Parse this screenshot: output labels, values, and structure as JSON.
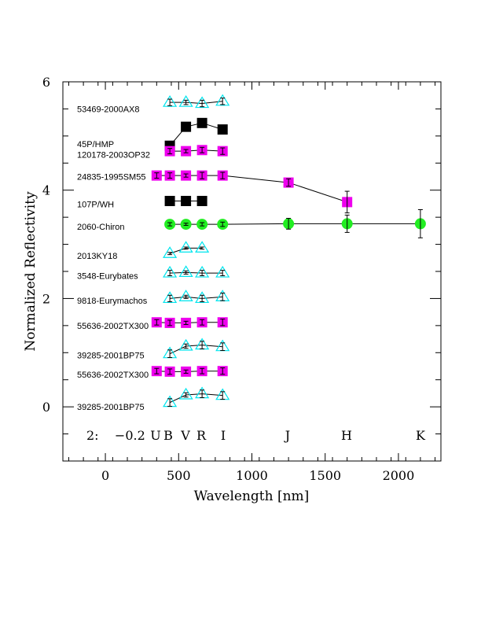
{
  "chart_data": {
    "type": "scatter",
    "xlabel": "Wavelength [nm]",
    "ylabel": "Normalized Reflectivity",
    "xlim": [
      -290,
      2290
    ],
    "ylim": [
      -1.0,
      6.0
    ],
    "xticks": [
      0,
      500,
      1000,
      1500,
      2000
    ],
    "yticks": [
      0,
      2,
      4,
      6
    ],
    "annotation": "2:    −0.2",
    "bands": [
      {
        "label": "U",
        "x": 420
      },
      {
        "label": "B",
        "x": 440
      },
      {
        "label": "V",
        "x": 550
      },
      {
        "label": "R",
        "x": 660
      },
      {
        "label": "I",
        "x": 800
      },
      {
        "label": "J",
        "x": 1250
      },
      {
        "label": "H",
        "x": 1650
      },
      {
        "label": "K",
        "x": 2150
      }
    ],
    "series": [
      {
        "name": "53469-2000AX8",
        "marker": "triangle",
        "color": "#00e5ee",
        "x": [
          440,
          550,
          660,
          800
        ],
        "y": [
          5.62,
          5.62,
          5.6,
          5.64
        ],
        "err": [
          0.06,
          0.04,
          0.06,
          0.06
        ]
      },
      {
        "name": "45P/HMP",
        "marker": "square",
        "color": "#000000",
        "x": [
          440,
          550,
          660,
          800
        ],
        "y": [
          4.82,
          5.17,
          5.24,
          5.12
        ],
        "err": [
          0,
          0,
          0,
          0
        ]
      },
      {
        "name": "120178-2003OP32",
        "marker": "square",
        "color": "#ee00ee",
        "x": [
          440,
          550,
          660,
          800
        ],
        "y": [
          4.72,
          4.72,
          4.74,
          4.72
        ],
        "err": [
          0.05,
          0.03,
          0.05,
          0.06
        ]
      },
      {
        "name": "24835-1995SM55",
        "marker": "square",
        "color": "#ee00ee",
        "x": [
          350,
          440,
          550,
          660,
          800,
          1250,
          1650
        ],
        "y": [
          4.27,
          4.27,
          4.27,
          4.27,
          4.27,
          4.14,
          3.78
        ],
        "err": [
          0.05,
          0.05,
          0.03,
          0.06,
          0.06,
          0.07,
          0.2
        ]
      },
      {
        "name": "107P/WH",
        "marker": "square",
        "color": "#000000",
        "x": [
          440,
          550,
          660
        ],
        "y": [
          3.8,
          3.8,
          3.8
        ],
        "err": [
          0,
          0,
          0
        ]
      },
      {
        "name": "2060-Chiron",
        "marker": "circle",
        "color": "#22ee22",
        "x": [
          440,
          550,
          660,
          800,
          1250,
          1650,
          2150
        ],
        "y": [
          3.37,
          3.37,
          3.37,
          3.37,
          3.38,
          3.38,
          3.38
        ],
        "err": [
          0.03,
          0.02,
          0.03,
          0.04,
          0.1,
          0.16,
          0.26
        ]
      },
      {
        "name": "2013KY18",
        "marker": "triangle",
        "color": "#00e5ee",
        "x": [
          440,
          550,
          660
        ],
        "y": [
          2.83,
          2.93,
          2.93
        ],
        "err": [
          0.02,
          0.02,
          0.02
        ]
      },
      {
        "name": "3548-Eurybates",
        "marker": "triangle",
        "color": "#00e5ee",
        "x": [
          440,
          550,
          660,
          800
        ],
        "y": [
          2.47,
          2.48,
          2.47,
          2.47
        ],
        "err": [
          0.05,
          0.03,
          0.05,
          0.05
        ]
      },
      {
        "name": "9818-Eurymachos",
        "marker": "triangle",
        "color": "#00e5ee",
        "x": [
          440,
          550,
          660,
          800
        ],
        "y": [
          2.0,
          2.03,
          2.0,
          2.03
        ],
        "err": [
          0.06,
          0.03,
          0.06,
          0.07
        ]
      },
      {
        "name": "55636-2002TX300",
        "marker": "square",
        "color": "#ee00ee",
        "x": [
          350,
          440,
          550,
          660,
          800
        ],
        "y": [
          1.56,
          1.55,
          1.55,
          1.56,
          1.56
        ],
        "err": [
          0.05,
          0.05,
          0.03,
          0.05,
          0.06
        ]
      },
      {
        "name": "39285-2001BP75",
        "marker": "triangle",
        "color": "#00e5ee",
        "x": [
          440,
          550,
          660,
          800
        ],
        "y": [
          0.98,
          1.12,
          1.14,
          1.11
        ],
        "err": [
          0.07,
          0.04,
          0.07,
          0.07
        ]
      },
      {
        "name": "55636-2002TX300",
        "marker": "square",
        "color": "#ee00ee",
        "x": [
          350,
          440,
          550,
          660,
          800
        ],
        "y": [
          0.66,
          0.65,
          0.65,
          0.66,
          0.66
        ],
        "err": [
          0.05,
          0.05,
          0.03,
          0.05,
          0.06
        ]
      },
      {
        "name": "39285-2001BP75",
        "marker": "triangle",
        "color": "#00e5ee",
        "x": [
          440,
          550,
          660,
          800
        ],
        "y": [
          0.08,
          0.22,
          0.24,
          0.21
        ],
        "err": [
          0.07,
          0.04,
          0.07,
          0.07
        ]
      }
    ],
    "labels": [
      {
        "text": "53469-2000AX8",
        "y": 5.5
      },
      {
        "text": "45P/HMP",
        "y": 4.85
      },
      {
        "text": "120178-2003OP32",
        "y": 4.66
      },
      {
        "text": "24835-1995SM55",
        "y": 4.25
      },
      {
        "text": "107P/WH",
        "y": 3.74
      },
      {
        "text": "2060-Chiron",
        "y": 3.33
      },
      {
        "text": "2013KY18",
        "y": 2.79
      },
      {
        "text": "3548-Eurybates",
        "y": 2.42
      },
      {
        "text": "9818-Eurymachos",
        "y": 1.96
      },
      {
        "text": "55636-2002TX300",
        "y": 1.5
      },
      {
        "text": "39285-2001BP75",
        "y": 0.95
      },
      {
        "text": "55636-2002TX300",
        "y": 0.6
      },
      {
        "text": "39285-2001BP75",
        "y": 0.0
      }
    ]
  }
}
